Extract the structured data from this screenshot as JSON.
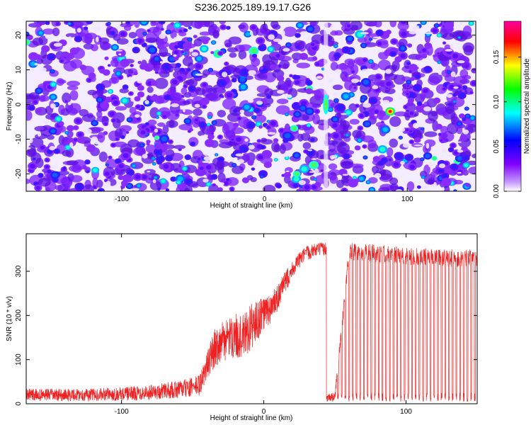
{
  "figure": {
    "title": "S236.2025.189.19.17.G26"
  },
  "chart_data": [
    {
      "type": "heatmap",
      "title": "S236.2025.189.19.17.G26",
      "xlabel": "Height of straight line (km)",
      "ylabel": "Frequency (Hz)",
      "xlim": [
        -167,
        148
      ],
      "ylim": [
        -25,
        24
      ],
      "xticks": [
        -100,
        0,
        100
      ],
      "yticks": [
        -20,
        -10,
        0,
        10,
        20
      ],
      "colorbar": {
        "label": "Normalized spectral amplitude",
        "range": [
          0,
          0.19
        ],
        "ticks": [
          0.0,
          0.05,
          0.1,
          0.15
        ],
        "tick_labels": [
          "0.00",
          "0.05",
          "0.10",
          "0.15"
        ],
        "colormap": [
          "#ffffff",
          "#8000ff",
          "#0000ff",
          "#00ffff",
          "#00ff00",
          "#ffff00",
          "#ff0000",
          "#ff00a0"
        ]
      },
      "features": [
        {
          "x": 43,
          "y": 0,
          "value": 0.08
        },
        {
          "x": 88,
          "y": -2,
          "value": 0.17
        }
      ],
      "background_level": 0.03,
      "grid": false,
      "legend": "none"
    },
    {
      "type": "line",
      "xlabel": "Height of straight line (km)",
      "ylabel": "SNR (10 * v/v)",
      "xlim": [
        -167,
        150
      ],
      "ylim": [
        0,
        385
      ],
      "xticks": [
        -100,
        0,
        100
      ],
      "yticks": [
        0,
        100,
        200,
        300
      ],
      "color": "#ee2222",
      "grid": false,
      "legend": "none",
      "series": [
        {
          "x": [
            -167,
            -150,
            -125,
            -100,
            -75,
            -60,
            -50,
            -45,
            -40,
            -35,
            -30,
            -25,
            -20,
            -15,
            -10,
            -5,
            0,
            5,
            10,
            15,
            20,
            25,
            30,
            35,
            40,
            44,
            46,
            50,
            60,
            80,
            100,
            120,
            140,
            150
          ],
          "values": [
            20,
            20,
            20,
            22,
            27,
            32,
            38,
            42,
            85,
            125,
            140,
            145,
            155,
            150,
            170,
            185,
            205,
            215,
            240,
            275,
            305,
            325,
            340,
            348,
            350,
            350,
            18,
            15,
            345,
            340,
            335,
            330,
            330,
            330
          ],
          "noise": [
            14,
            14,
            14,
            15,
            18,
            20,
            22,
            25,
            30,
            45,
            45,
            45,
            50,
            50,
            55,
            50,
            40,
            35,
            30,
            25,
            20,
            18,
            18,
            15,
            15,
            15,
            10,
            10,
            20,
            20,
            20,
            20,
            20,
            20
          ],
          "dropouts": {
            "start": 44,
            "end": 150,
            "period": 2.6,
            "low": 15
          }
        }
      ]
    }
  ]
}
